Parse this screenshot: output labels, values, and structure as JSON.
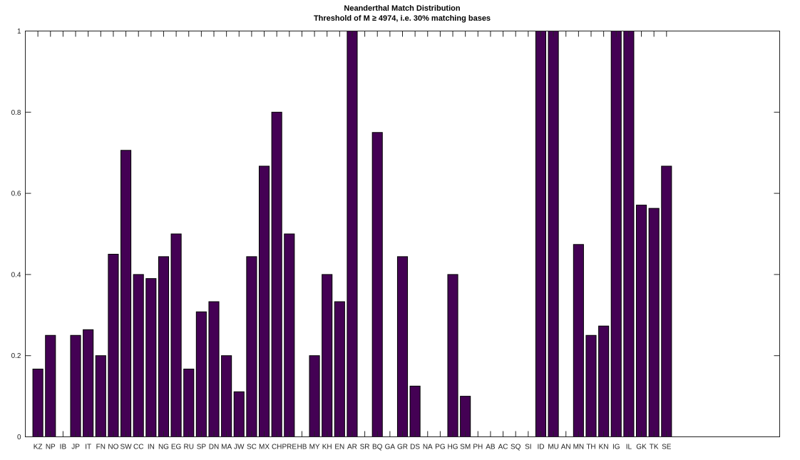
{
  "chart_data": {
    "type": "bar",
    "title": "Neanderthal Match Distribution",
    "subtitle": "Threshold of M ≥ 4974, i.e. 30% matching bases",
    "xlabel": "",
    "ylabel": "",
    "categories": [
      "KZ",
      "NP",
      "IB",
      "JP",
      "IT",
      "FN",
      "NO",
      "SW",
      "CC",
      "IN",
      "NG",
      "EG",
      "RU",
      "SP",
      "DN",
      "MA",
      "JW",
      "SC",
      "MX",
      "CH",
      "PRE",
      "HB",
      "MY",
      "KH",
      "EN",
      "AR",
      "SR",
      "BQ",
      "GA",
      "GR",
      "DS",
      "NA",
      "PG",
      "HG",
      "SM",
      "PH",
      "AB",
      "AC",
      "SQ",
      "SI",
      "ID",
      "MU",
      "AN",
      "MN",
      "TH",
      "KN",
      "IG",
      "IL",
      "GK",
      "TK",
      "SE"
    ],
    "values": [
      0.167,
      0.25,
      0,
      0.25,
      0.264,
      0.2,
      0.45,
      0.706,
      0.4,
      0.39,
      0.444,
      0.5,
      0.167,
      0.308,
      0.333,
      0.2,
      0.111,
      0.444,
      0.667,
      0.8,
      0.5,
      0,
      0.2,
      0.4,
      0.333,
      1,
      0,
      0.75,
      0,
      0.444,
      0.125,
      0,
      0,
      0.4,
      0.1,
      0,
      0,
      0,
      0,
      0,
      1,
      1,
      0,
      0.474,
      0.25,
      0.273,
      1,
      1,
      0.571,
      0.563,
      0.667
    ],
    "ylim": [
      0,
      1
    ],
    "xlim": [
      0,
      60
    ],
    "yticks": [
      "0",
      "0.2",
      "0.4",
      "0.6",
      "0.8",
      "1"
    ],
    "grid": false,
    "bar_color": "#440154"
  }
}
